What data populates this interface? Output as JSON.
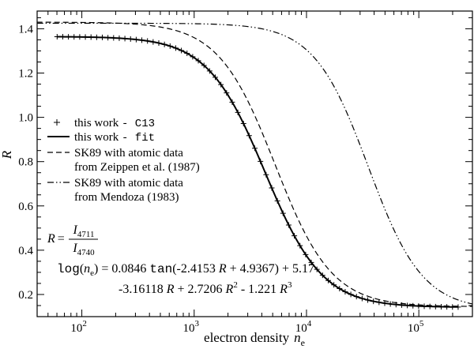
{
  "chart_data": {
    "type": "line",
    "xscale": "log",
    "xlim": [
      40,
      300000
    ],
    "ylim": [
      0.1,
      1.48
    ],
    "xlabel": {
      "text": "electron density",
      "var": "n",
      "sub": "e"
    },
    "ylabel": "R",
    "x_ticks": [
      {
        "value": 100,
        "base": "10",
        "exp": "2"
      },
      {
        "value": 1000,
        "base": "10",
        "exp": "3"
      },
      {
        "value": 10000,
        "base": "10",
        "exp": "4"
      },
      {
        "value": 100000,
        "base": "10",
        "exp": "5"
      }
    ],
    "y_ticks": [
      {
        "value": 0.2,
        "label": "0.2"
      },
      {
        "value": 0.4,
        "label": "0.4"
      },
      {
        "value": 0.6,
        "label": "0.6"
      },
      {
        "value": 0.8,
        "label": "0.8"
      },
      {
        "value": 1.0,
        "label": "1.0"
      },
      {
        "value": 1.2,
        "label": "1.2"
      },
      {
        "value": 1.4,
        "label": "1.4"
      }
    ],
    "series": [
      {
        "name": "this work - C13",
        "style": "markers",
        "model": {
          "Rlow": 1.365,
          "Rhigh": 0.142,
          "logne_half": 3.63,
          "slope": 1.7
        },
        "logne_start": 1.78,
        "logne_end": 5.35,
        "n_markers": 72
      },
      {
        "name": "this work - fit",
        "style": "solid",
        "model": {
          "Rlow": 1.365,
          "Rhigh": 0.142,
          "logne_half": 3.63,
          "slope": 1.7
        },
        "logne_start": 1.78,
        "logne_end": 5.35
      },
      {
        "name": "SK89 with atomic data from Zeippen et al. (1987)",
        "style": "dashed",
        "model": {
          "Rlow": 1.43,
          "Rhigh": 0.145,
          "logne_half": 3.72,
          "slope": 1.72
        },
        "logne_start": 1.6,
        "logne_end": 5.477
      },
      {
        "name": "SK89 with atomic data from Mendoza (1983)",
        "style": "dashdotdot",
        "model": {
          "Rlow": 1.425,
          "Rhigh": 0.13,
          "logne_half": 4.55,
          "slope": 1.8
        },
        "logne_start": 1.6,
        "logne_end": 5.477
      }
    ],
    "legend": {
      "placement": "middle-left",
      "entries": [
        {
          "symbol": "markers",
          "text": "this work ",
          "code": "- C13"
        },
        {
          "symbol": "solid",
          "text": "this work ",
          "code": "- fit"
        },
        {
          "symbol": "dashed",
          "lines": [
            "SK89 with atomic data",
            "from Zeippen et al. (1987)"
          ]
        },
        {
          "symbol": "dashdotdot",
          "lines": [
            "SK89 with atomic data",
            "from Mendoza (1983)"
          ]
        }
      ]
    },
    "annotations": {
      "ratio": {
        "lhs": "R",
        "eq": "=",
        "num": "I",
        "num_sub": "4711",
        "den": "I",
        "den_sub": "4740"
      },
      "formula_line1": {
        "log": "log",
        "var": "n",
        "sub": "e",
        "part1": " = 0.0846 ",
        "tan": "tan",
        "part2": "(-2.4153 ",
        "R": "R",
        "part3": " + 4.9367) + 5.17"
      },
      "formula_line2": {
        "t1": "-3.16118 ",
        "R1": "R",
        "t2": " + 2.7206 ",
        "R2": "R",
        "e2": "2",
        "t3": " - 1.221 ",
        "R3": "R",
        "e3": "3"
      }
    }
  }
}
